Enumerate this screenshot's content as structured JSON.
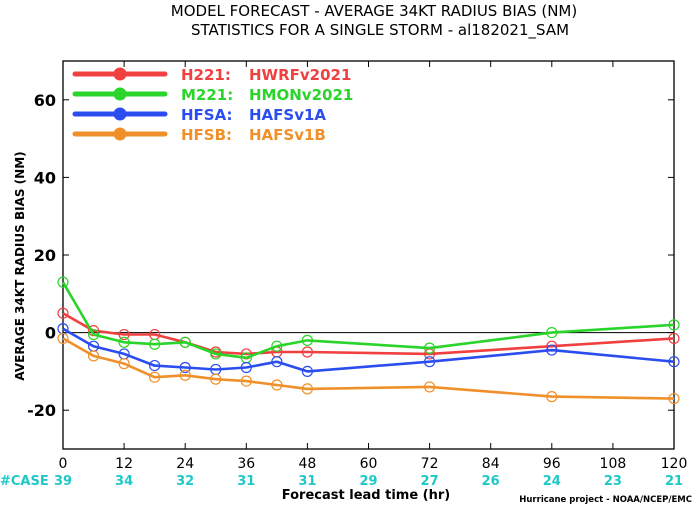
{
  "chart_data": {
    "type": "line",
    "title": "MODEL FORECAST - AVERAGE 34KT RADIUS BIAS (NM)",
    "subtitle": "STATISTICS FOR A SINGLE STORM - al182021_SAM",
    "ylabel": "AVERAGE 34KT RADIUS BIAS (NM)",
    "xlabel": "Forecast lead time (hr)",
    "credit": "Hurricane project - NOAA/NCEP/EMC",
    "xlim": [
      0,
      120
    ],
    "ylim": [
      -30,
      70
    ],
    "xticks": [
      0,
      12,
      24,
      36,
      48,
      60,
      72,
      84,
      96,
      108,
      120
    ],
    "yticks": [
      -20,
      0,
      20,
      40,
      60
    ],
    "zero_line": true,
    "legend_position": "top-left",
    "case_label": "#CASE",
    "cases": [
      {
        "x": 0,
        "n": "39"
      },
      {
        "x": 12,
        "n": "34"
      },
      {
        "x": 24,
        "n": "32"
      },
      {
        "x": 36,
        "n": "31"
      },
      {
        "x": 48,
        "n": "31"
      },
      {
        "x": 60,
        "n": "29"
      },
      {
        "x": 72,
        "n": "27"
      },
      {
        "x": 84,
        "n": "26"
      },
      {
        "x": 96,
        "n": "24"
      },
      {
        "x": 108,
        "n": "23"
      },
      {
        "x": 120,
        "n": "21"
      }
    ],
    "series": [
      {
        "name": "H221:",
        "desc": "HWRFv2021",
        "color": "#f04040",
        "x": [
          0,
          6,
          12,
          18,
          24,
          30,
          36,
          42,
          48,
          72,
          96,
          120
        ],
        "y": [
          5,
          0.5,
          -0.5,
          -0.5,
          -2.5,
          -5,
          -5.5,
          -5,
          -5,
          -5.5,
          -3.5,
          -1.5
        ]
      },
      {
        "name": "M221:",
        "desc": "HMONv2021",
        "color": "#2ad42a",
        "x": [
          0,
          6,
          12,
          18,
          24,
          30,
          36,
          42,
          48,
          72,
          96,
          120
        ],
        "y": [
          13,
          -0.5,
          -2.5,
          -3,
          -2.5,
          -5.5,
          -6.5,
          -3.5,
          -2,
          -4,
          0,
          2
        ]
      },
      {
        "name": "HFSA:",
        "desc": "HAFSv1A",
        "color": "#2b4df0",
        "x": [
          0,
          6,
          12,
          18,
          24,
          30,
          36,
          42,
          48,
          72,
          96,
          120
        ],
        "y": [
          1,
          -3.5,
          -5.5,
          -8.5,
          -9,
          -9.5,
          -9,
          -7.5,
          -10,
          -7.5,
          -4.5,
          -7.5
        ]
      },
      {
        "name": "HFSB:",
        "desc": "HAFSv1B",
        "color": "#f0902a",
        "x": [
          0,
          6,
          12,
          18,
          24,
          30,
          36,
          42,
          48,
          72,
          96,
          120
        ],
        "y": [
          -1.5,
          -6,
          -8,
          -11.5,
          -11,
          -12,
          -12.5,
          -13.5,
          -14.5,
          -14,
          -16.5,
          -17
        ]
      }
    ]
  }
}
